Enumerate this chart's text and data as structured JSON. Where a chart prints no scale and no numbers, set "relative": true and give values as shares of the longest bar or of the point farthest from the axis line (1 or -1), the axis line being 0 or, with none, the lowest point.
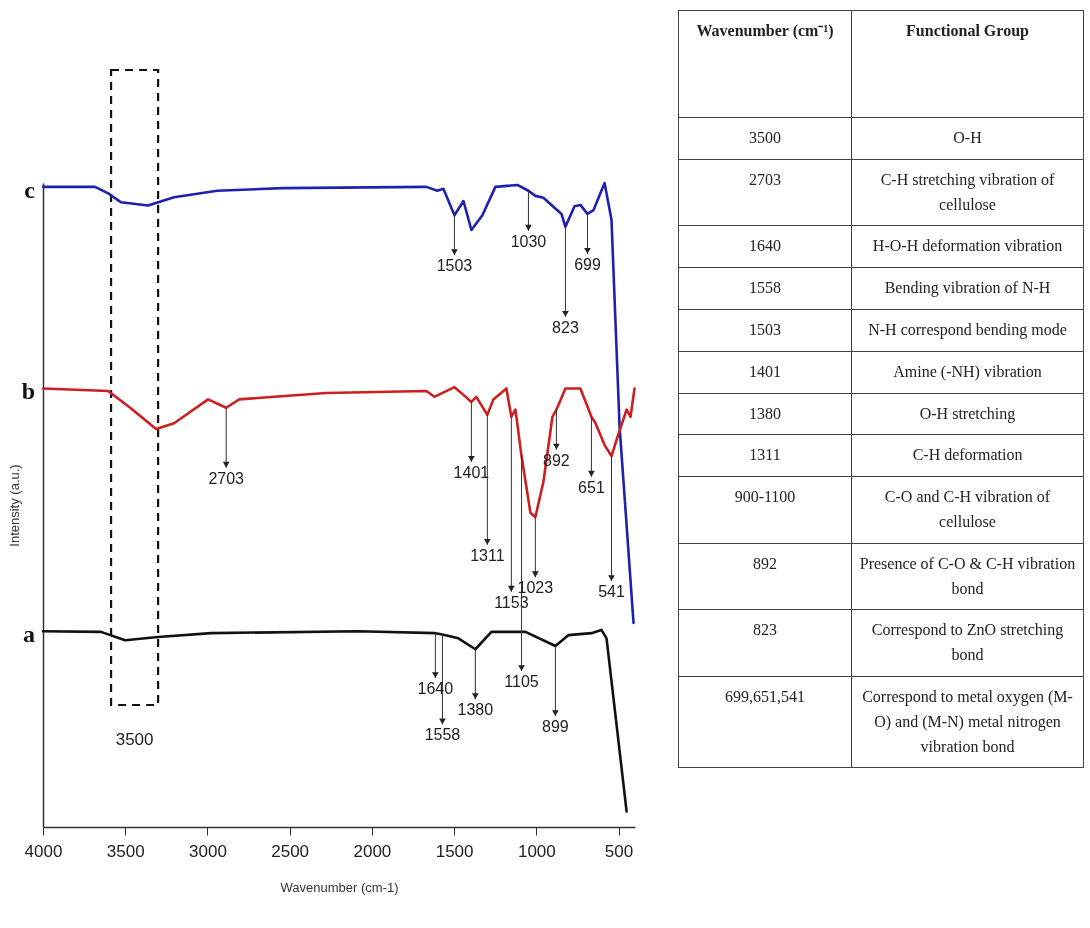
{
  "chart_data": [
    {
      "type": "line",
      "relative": true,
      "xlabel": "Wavenumber (cm-1)",
      "ylabel": "Intensity (a.u.)",
      "xlim": [
        4000,
        400
      ],
      "xticks": [
        4000,
        3500,
        3000,
        2500,
        2000,
        1500,
        1000,
        500
      ],
      "grid": false,
      "marker": "none",
      "line_style": "solid",
      "series": [
        {
          "name": "c",
          "color": "#2020b0",
          "x": [
            4000,
            3683,
            3604,
            3525,
            3361,
            3203,
            2941,
            2545,
            1669,
            1602,
            1565,
            1498,
            1443,
            1395,
            1328,
            1249,
            1115,
            1048,
            1006,
            957,
            847,
            823,
            768,
            732,
            689,
            652,
            585,
            543,
            494,
            409
          ],
          "values": [
            0.994,
            0.994,
            0.984,
            0.97,
            0.965,
            0.978,
            0.988,
            0.992,
            0.994,
            0.988,
            0.991,
            0.95,
            0.972,
            0.927,
            0.95,
            0.994,
            0.997,
            0.988,
            0.98,
            0.977,
            0.952,
            0.932,
            0.964,
            0.966,
            0.952,
            0.958,
            1.0,
            0.943,
            0.623,
            0.317
          ]
        },
        {
          "name": "b",
          "color": "#cc2020",
          "x": [
            4000,
            3604,
            3470,
            3312,
            3203,
            2996,
            2886,
            2807,
            2278,
            1669,
            1620,
            1498,
            1443,
            1395,
            1365,
            1298,
            1261,
            1182,
            1152,
            1127,
            1090,
            1036,
            1006,
            957,
            902,
            878,
            823,
            732,
            665,
            640,
            585,
            543,
            506,
            451,
            427,
            403
          ],
          "values": [
            0.681,
            0.677,
            0.651,
            0.618,
            0.627,
            0.664,
            0.651,
            0.664,
            0.674,
            0.677,
            0.668,
            0.683,
            0.671,
            0.66,
            0.668,
            0.64,
            0.664,
            0.681,
            0.637,
            0.648,
            0.576,
            0.488,
            0.481,
            0.536,
            0.637,
            0.648,
            0.681,
            0.681,
            0.637,
            0.627,
            0.593,
            0.576,
            0.606,
            0.648,
            0.637,
            0.681
          ]
        },
        {
          "name": "a",
          "color": "#111111",
          "x": [
            4000,
            3647,
            3501,
            3300,
            2977,
            2083,
            1614,
            1571,
            1474,
            1371,
            1273,
            1066,
            884,
            804,
            665,
            604,
            573,
            451
          ],
          "values": [
            0.304,
            0.303,
            0.29,
            0.295,
            0.301,
            0.304,
            0.301,
            0.299,
            0.293,
            0.276,
            0.303,
            0.303,
            0.281,
            0.298,
            0.301,
            0.306,
            0.293,
            0.024
          ]
        }
      ],
      "bands": [
        {
          "axis": "x",
          "from": 3586,
          "to": 3300,
          "label": "3500"
        }
      ],
      "annotations": [
        {
          "text": "1503",
          "x": 1498,
          "y": 0.95
        },
        {
          "text": "1030",
          "x": 1048,
          "y": 0.988
        },
        {
          "text": "823",
          "x": 823,
          "y": 0.932
        },
        {
          "text": "699",
          "x": 689,
          "y": 0.952
        },
        {
          "text": "2703",
          "x": 2886,
          "y": 0.651
        },
        {
          "text": "1401",
          "x": 1395,
          "y": 0.66
        },
        {
          "text": "1311",
          "x": 1298,
          "y": 0.64
        },
        {
          "text": "892",
          "x": 878,
          "y": 0.648
        },
        {
          "text": "1153",
          "x": 1152,
          "y": 0.637
        },
        {
          "text": "1023",
          "x": 1006,
          "y": 0.481
        },
        {
          "text": "651",
          "x": 665,
          "y": 0.637
        },
        {
          "text": "541",
          "x": 543,
          "y": 0.576
        },
        {
          "text": "1105",
          "x": 1090,
          "y": 0.576
        },
        {
          "text": "1640",
          "x": 1614,
          "y": 0.301
        },
        {
          "text": "1558",
          "x": 1571,
          "y": 0.299
        },
        {
          "text": "1380",
          "x": 1371,
          "y": 0.276
        },
        {
          "text": "899",
          "x": 884,
          "y": 0.281
        }
      ]
    },
    {
      "type": "other",
      "annotations": [
        "Wavenumber (cm⁻¹)",
        "Functional Group",
        "3500",
        "O-H",
        "2703",
        "C-H stretching vibration of cellulose",
        "1640",
        "H-O-H deformation vibration",
        "1558",
        "Bending vibration of N-H",
        "1503",
        "N-H correspond bending mode",
        "1401",
        "Amine (-NH) vibration",
        "1380",
        "O-H stretching",
        "1311",
        "C-H deformation",
        "900-1100",
        "C-O and C-H vibration of cellulose",
        "892",
        "Presence of C-O & C-H vibration bond",
        "823",
        "Correspond to ZnO stretching bond",
        "699,651,541",
        "Correspond to metal oxygen (M-O) and (M-N) metal nitrogen vibration bond"
      ]
    }
  ]
}
